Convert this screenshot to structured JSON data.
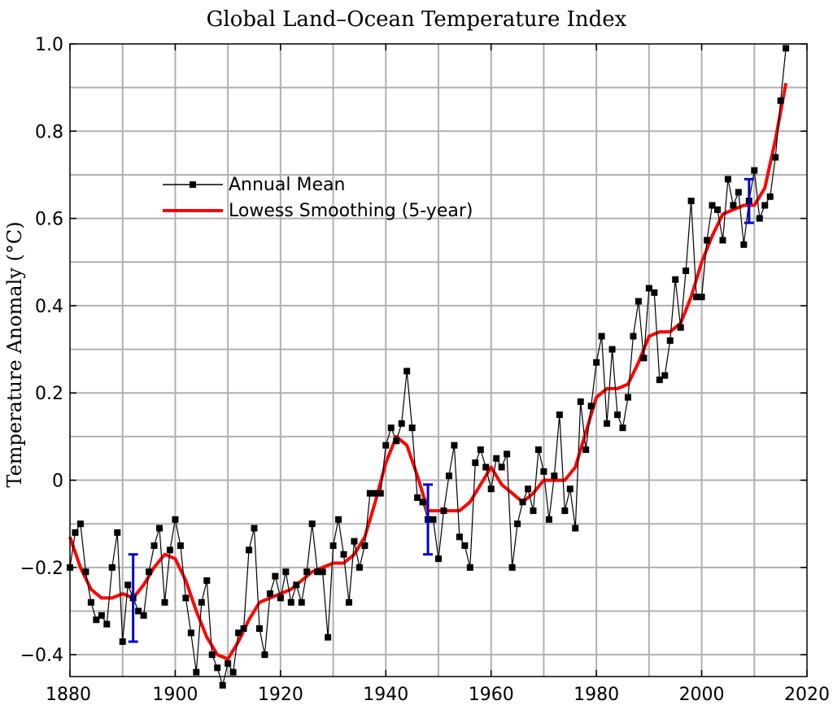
{
  "chart_data": {
    "type": "line",
    "title": "Global Land–Ocean Temperature Index",
    "xlabel": "",
    "ylabel": "Temperature Anomaly (°C)",
    "xlim": [
      1880,
      2020
    ],
    "ylim": [
      -0.45,
      1.0
    ],
    "x_ticks": [
      1880,
      1900,
      1920,
      1940,
      1960,
      1980,
      2000,
      2020
    ],
    "x_tick_labels": [
      "1880",
      "1900",
      "1920",
      "1940",
      "1960",
      "1980",
      "2000",
      "2020"
    ],
    "y_ticks": [
      -0.4,
      -0.2,
      0,
      0.2,
      0.4,
      0.6,
      0.8,
      1.0
    ],
    "y_tick_labels": [
      "−0.4",
      "−0.2",
      "0",
      "0.2",
      "0.4",
      "0.6",
      "0.8",
      "1.0"
    ],
    "grid": true,
    "legend_position": "upper-left",
    "colors": {
      "annual": "#000000",
      "smooth": "#ff0000",
      "error": "#0000cc",
      "grid": "#b0b0b0"
    },
    "series": [
      {
        "name": "Annual Mean",
        "style": "line-with-square-markers",
        "x": [
          1880,
          1881,
          1882,
          1883,
          1884,
          1885,
          1886,
          1887,
          1888,
          1889,
          1890,
          1891,
          1892,
          1893,
          1894,
          1895,
          1896,
          1897,
          1898,
          1899,
          1900,
          1901,
          1902,
          1903,
          1904,
          1905,
          1906,
          1907,
          1908,
          1909,
          1910,
          1911,
          1912,
          1913,
          1914,
          1915,
          1916,
          1917,
          1918,
          1919,
          1920,
          1921,
          1922,
          1923,
          1924,
          1925,
          1926,
          1927,
          1928,
          1929,
          1930,
          1931,
          1932,
          1933,
          1934,
          1935,
          1936,
          1937,
          1938,
          1939,
          1940,
          1941,
          1942,
          1943,
          1944,
          1945,
          1946,
          1947,
          1948,
          1949,
          1950,
          1951,
          1952,
          1953,
          1954,
          1955,
          1956,
          1957,
          1958,
          1959,
          1960,
          1961,
          1962,
          1963,
          1964,
          1965,
          1966,
          1967,
          1968,
          1969,
          1970,
          1971,
          1972,
          1973,
          1974,
          1975,
          1976,
          1977,
          1978,
          1979,
          1980,
          1981,
          1982,
          1983,
          1984,
          1985,
          1986,
          1987,
          1988,
          1989,
          1990,
          1991,
          1992,
          1993,
          1994,
          1995,
          1996,
          1997,
          1998,
          1999,
          2000,
          2001,
          2002,
          2003,
          2004,
          2005,
          2006,
          2007,
          2008,
          2009,
          2010,
          2011,
          2012,
          2013,
          2014,
          2015,
          2016
        ],
        "y": [
          -0.2,
          -0.12,
          -0.1,
          -0.21,
          -0.28,
          -0.32,
          -0.31,
          -0.33,
          -0.2,
          -0.12,
          -0.37,
          -0.24,
          -0.27,
          -0.3,
          -0.31,
          -0.21,
          -0.15,
          -0.11,
          -0.28,
          -0.16,
          -0.09,
          -0.15,
          -0.27,
          -0.35,
          -0.44,
          -0.28,
          -0.23,
          -0.4,
          -0.43,
          -0.47,
          -0.42,
          -0.44,
          -0.35,
          -0.34,
          -0.16,
          -0.11,
          -0.34,
          -0.4,
          -0.26,
          -0.22,
          -0.27,
          -0.21,
          -0.28,
          -0.24,
          -0.28,
          -0.21,
          -0.1,
          -0.21,
          -0.21,
          -0.36,
          -0.15,
          -0.09,
          -0.17,
          -0.28,
          -0.14,
          -0.2,
          -0.15,
          -0.03,
          -0.03,
          -0.03,
          0.08,
          0.12,
          0.09,
          0.13,
          0.25,
          0.12,
          -0.04,
          -0.05,
          -0.09,
          -0.09,
          -0.18,
          -0.07,
          0.01,
          0.08,
          -0.13,
          -0.15,
          -0.2,
          0.04,
          0.07,
          0.03,
          -0.02,
          0.05,
          0.03,
          0.06,
          -0.2,
          -0.1,
          -0.05,
          -0.02,
          -0.07,
          0.07,
          0.02,
          -0.09,
          0.01,
          0.15,
          -0.07,
          -0.02,
          -0.11,
          0.18,
          0.07,
          0.17,
          0.27,
          0.33,
          0.13,
          0.3,
          0.15,
          0.12,
          0.19,
          0.33,
          0.41,
          0.28,
          0.44,
          0.43,
          0.23,
          0.24,
          0.32,
          0.46,
          0.35,
          0.48,
          0.64,
          0.42,
          0.42,
          0.55,
          0.63,
          0.62,
          0.55,
          0.69,
          0.63,
          0.66,
          0.54,
          0.64,
          0.71,
          0.6,
          0.63,
          0.65,
          0.74,
          0.87,
          0.99
        ]
      },
      {
        "name": "Lowess Smoothing (5-year)",
        "style": "thick-line",
        "x": [
          1880,
          1882,
          1884,
          1886,
          1888,
          1890,
          1892,
          1894,
          1896,
          1898,
          1900,
          1902,
          1904,
          1906,
          1908,
          1910,
          1912,
          1914,
          1916,
          1918,
          1920,
          1922,
          1924,
          1926,
          1928,
          1930,
          1932,
          1934,
          1936,
          1938,
          1940,
          1942,
          1944,
          1946,
          1948,
          1950,
          1952,
          1954,
          1956,
          1958,
          1960,
          1962,
          1964,
          1966,
          1968,
          1970,
          1972,
          1974,
          1976,
          1978,
          1980,
          1982,
          1984,
          1986,
          1988,
          1990,
          1992,
          1994,
          1996,
          1998,
          2000,
          2002,
          2004,
          2006,
          2008,
          2010,
          2012,
          2014,
          2016
        ],
        "y": [
          -0.13,
          -0.2,
          -0.25,
          -0.27,
          -0.27,
          -0.26,
          -0.27,
          -0.24,
          -0.2,
          -0.17,
          -0.18,
          -0.23,
          -0.3,
          -0.36,
          -0.4,
          -0.41,
          -0.37,
          -0.32,
          -0.28,
          -0.27,
          -0.26,
          -0.25,
          -0.23,
          -0.21,
          -0.2,
          -0.19,
          -0.19,
          -0.17,
          -0.13,
          -0.05,
          0.04,
          0.1,
          0.08,
          0.01,
          -0.07,
          -0.07,
          -0.07,
          -0.07,
          -0.05,
          -0.01,
          0.03,
          -0.01,
          -0.03,
          -0.05,
          -0.03,
          0.0,
          0.0,
          0.0,
          0.03,
          0.11,
          0.19,
          0.21,
          0.21,
          0.22,
          0.27,
          0.33,
          0.34,
          0.34,
          0.36,
          0.42,
          0.5,
          0.56,
          0.61,
          0.62,
          0.63,
          0.63,
          0.67,
          0.78,
          0.91
        ]
      }
    ],
    "error_bars": [
      {
        "x": 1892,
        "low": -0.37,
        "high": -0.17
      },
      {
        "x": 1948,
        "low": -0.17,
        "high": -0.01
      },
      {
        "x": 2009,
        "low": 0.59,
        "high": 0.69
      }
    ],
    "legend": [
      "Annual Mean",
      "Lowess Smoothing (5-year)"
    ]
  }
}
